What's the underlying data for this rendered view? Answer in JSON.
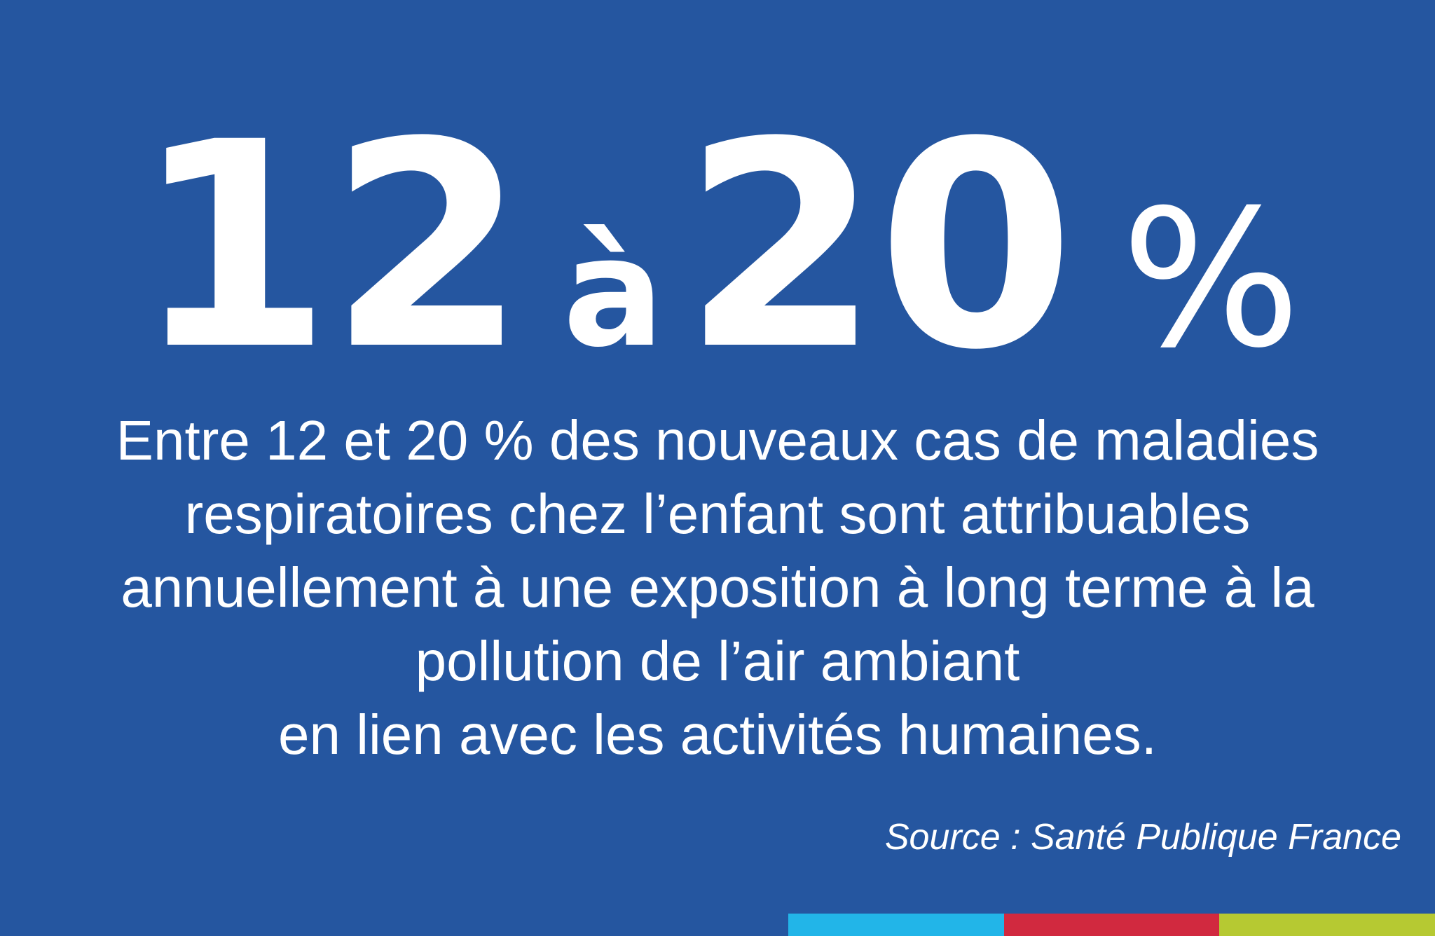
{
  "headline": {
    "from": "12",
    "conjunction": "à",
    "to": "20",
    "unit": "%"
  },
  "body": {
    "lines": [
      "Entre 12 et 20 % des nouveaux cas de maladies",
      "respiratoires chez l’enfant sont attribuables",
      "annuellement à une exposition à long terme à la",
      "pollution de l’air ambiant",
      "en lien avec les activités humaines."
    ]
  },
  "source": "Source : Santé Publique France",
  "colors": {
    "background": "#2556a0",
    "text": "#ffffff",
    "bar": [
      "#22b5e8",
      "#d1293f",
      "#b6c932"
    ]
  }
}
